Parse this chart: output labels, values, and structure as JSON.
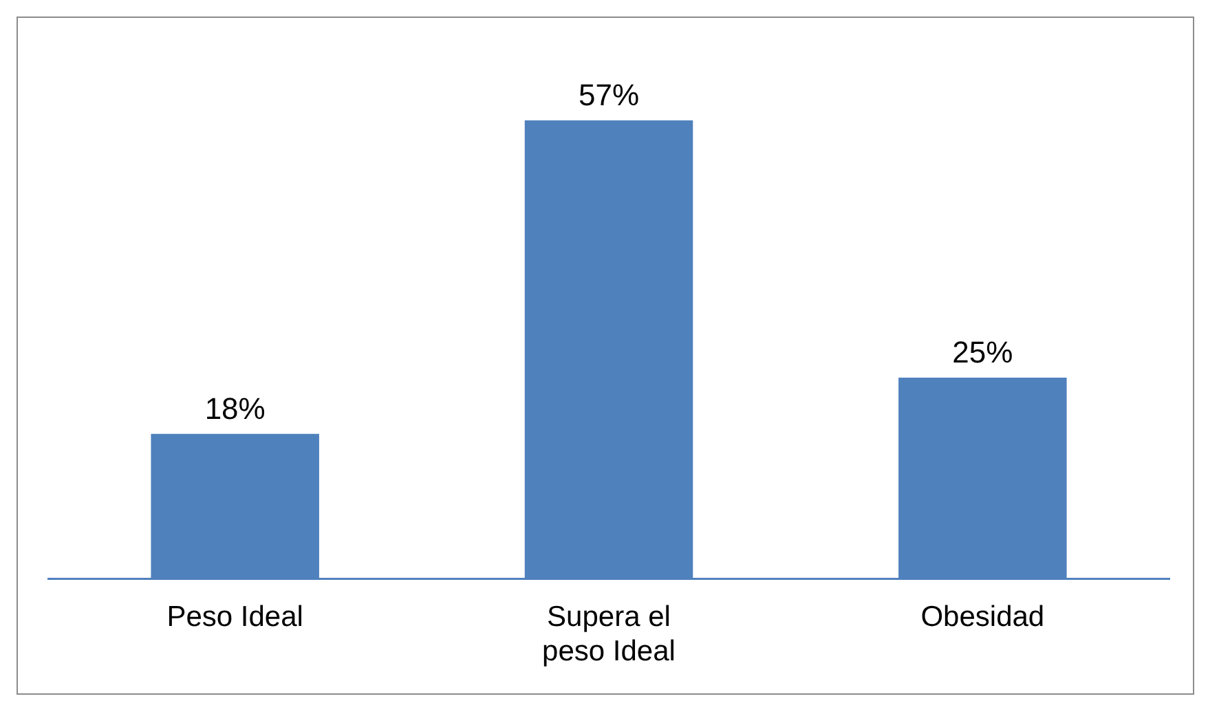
{
  "chart_data": {
    "type": "bar",
    "categories": [
      "Peso Ideal",
      "Supera el peso Ideal",
      "Obesidad"
    ],
    "values": [
      18,
      57,
      25
    ],
    "color": "#4f81bd",
    "value_labels": [
      "18%",
      "57%",
      "25%"
    ],
    "grid": false,
    "legend": false,
    "tick_labels": "x"
  }
}
